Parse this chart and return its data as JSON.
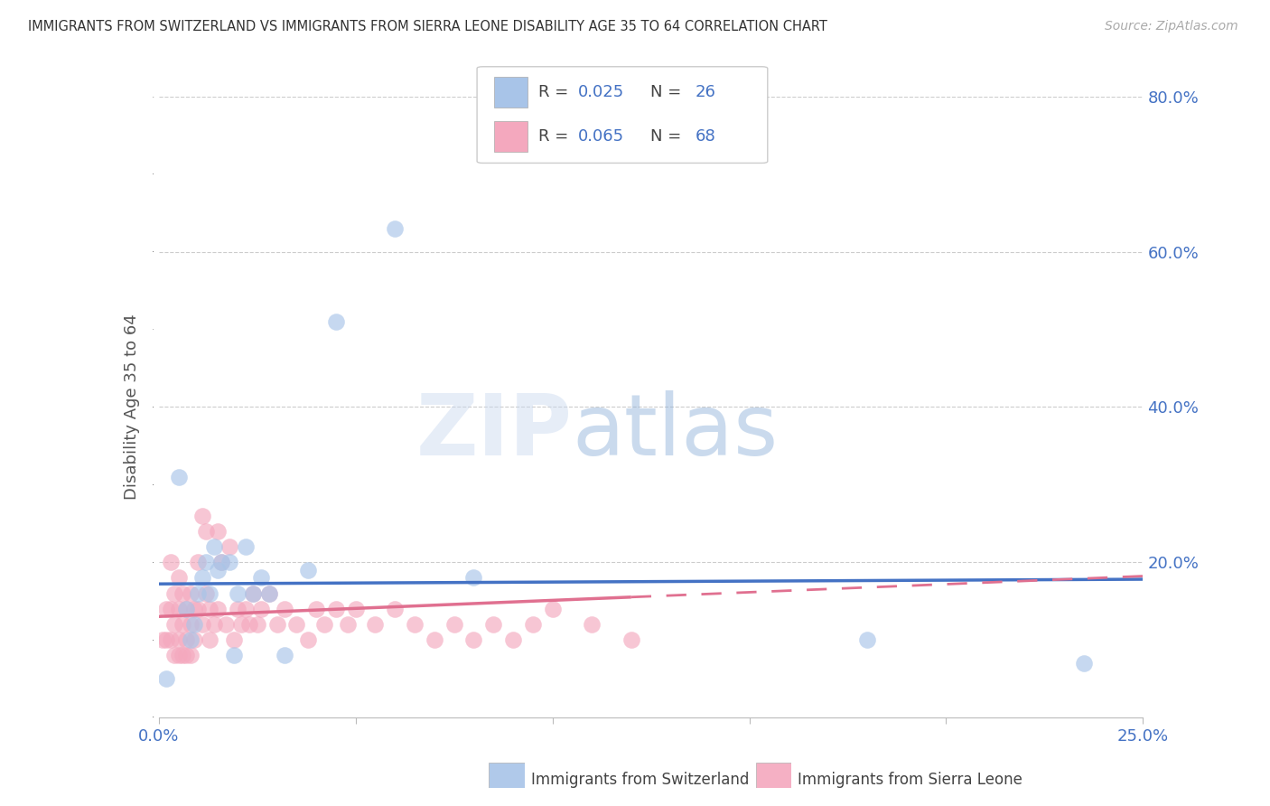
{
  "title": "IMMIGRANTS FROM SWITZERLAND VS IMMIGRANTS FROM SIERRA LEONE DISABILITY AGE 35 TO 64 CORRELATION CHART",
  "source": "Source: ZipAtlas.com",
  "ylabel": "Disability Age 35 to 64",
  "watermark_zip": "ZIP",
  "watermark_atlas": "atlas",
  "xlim": [
    0.0,
    0.25
  ],
  "ylim": [
    0.0,
    0.8
  ],
  "xticks": [
    0.0,
    0.05,
    0.1,
    0.15,
    0.2,
    0.25
  ],
  "xticklabels": [
    "0.0%",
    "",
    "",
    "",
    "",
    "25.0%"
  ],
  "yticks_right": [
    0.0,
    0.2,
    0.4,
    0.6,
    0.8
  ],
  "yticklabels_right": [
    "",
    "20.0%",
    "40.0%",
    "60.0%",
    "80.0%"
  ],
  "legend_label_swiss": "Immigrants from Switzerland",
  "legend_label_leone": "Immigrants from Sierra Leone",
  "swiss_color": "#a8c4e8",
  "leone_color": "#f4a8be",
  "swiss_line_color": "#4472c4",
  "leone_line_color": "#e07090",
  "swiss_x": [
    0.002,
    0.005,
    0.007,
    0.008,
    0.009,
    0.01,
    0.011,
    0.012,
    0.013,
    0.014,
    0.015,
    0.016,
    0.018,
    0.019,
    0.02,
    0.022,
    0.024,
    0.026,
    0.028,
    0.032,
    0.038,
    0.045,
    0.06,
    0.08,
    0.18,
    0.235
  ],
  "swiss_y": [
    0.05,
    0.31,
    0.14,
    0.1,
    0.12,
    0.16,
    0.18,
    0.2,
    0.16,
    0.22,
    0.19,
    0.2,
    0.2,
    0.08,
    0.16,
    0.22,
    0.16,
    0.18,
    0.16,
    0.08,
    0.19,
    0.51,
    0.63,
    0.18,
    0.1,
    0.07
  ],
  "leone_x": [
    0.001,
    0.002,
    0.002,
    0.003,
    0.003,
    0.003,
    0.004,
    0.004,
    0.004,
    0.005,
    0.005,
    0.005,
    0.005,
    0.006,
    0.006,
    0.006,
    0.007,
    0.007,
    0.007,
    0.008,
    0.008,
    0.008,
    0.009,
    0.009,
    0.01,
    0.01,
    0.011,
    0.011,
    0.012,
    0.012,
    0.013,
    0.013,
    0.014,
    0.015,
    0.015,
    0.016,
    0.017,
    0.018,
    0.019,
    0.02,
    0.021,
    0.022,
    0.023,
    0.024,
    0.025,
    0.026,
    0.028,
    0.03,
    0.032,
    0.035,
    0.038,
    0.04,
    0.042,
    0.045,
    0.048,
    0.05,
    0.055,
    0.06,
    0.065,
    0.07,
    0.075,
    0.08,
    0.085,
    0.09,
    0.095,
    0.1,
    0.11,
    0.12
  ],
  "leone_y": [
    0.1,
    0.14,
    0.1,
    0.2,
    0.14,
    0.1,
    0.16,
    0.12,
    0.08,
    0.18,
    0.14,
    0.1,
    0.08,
    0.16,
    0.12,
    0.08,
    0.14,
    0.1,
    0.08,
    0.16,
    0.12,
    0.08,
    0.14,
    0.1,
    0.2,
    0.14,
    0.26,
    0.12,
    0.24,
    0.16,
    0.14,
    0.1,
    0.12,
    0.24,
    0.14,
    0.2,
    0.12,
    0.22,
    0.1,
    0.14,
    0.12,
    0.14,
    0.12,
    0.16,
    0.12,
    0.14,
    0.16,
    0.12,
    0.14,
    0.12,
    0.1,
    0.14,
    0.12,
    0.14,
    0.12,
    0.14,
    0.12,
    0.14,
    0.12,
    0.1,
    0.12,
    0.1,
    0.12,
    0.1,
    0.12,
    0.14,
    0.12,
    0.1
  ],
  "blue_trendline_x0": 0.0,
  "blue_trendline_y0": 0.172,
  "blue_trendline_x1": 0.25,
  "blue_trendline_y1": 0.178,
  "pink_trendline_x0": 0.0,
  "pink_trendline_y0": 0.13,
  "pink_trendline_x1": 0.12,
  "pink_trendline_y1": 0.155
}
